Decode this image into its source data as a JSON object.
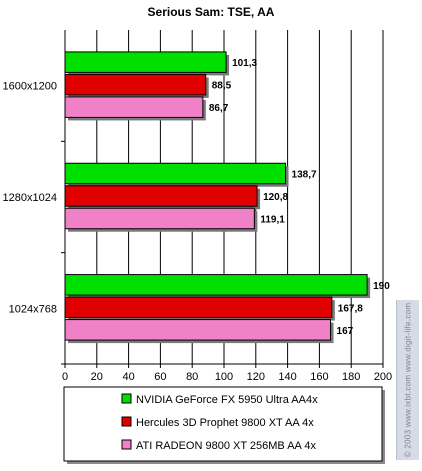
{
  "chart_data": {
    "type": "bar",
    "orientation": "horizontal",
    "title": "Serious Sam: TSE, AA",
    "categories": [
      "1600x1200",
      "1280x1024",
      "1024x768"
    ],
    "series": [
      {
        "name": "NVIDIA GeForce FX 5950 Ultra AA4x",
        "color": "#00e000",
        "values": [
          101.3,
          138.7,
          190
        ],
        "labels": [
          "101,3",
          "138,7",
          "190"
        ]
      },
      {
        "name": "Hercules 3D Prophet 9800 XT AA 4x",
        "color": "#e00000",
        "values": [
          88.5,
          120.8,
          167.8
        ],
        "labels": [
          "88,5",
          "120,8",
          "167,8"
        ]
      },
      {
        "name": "ATI RADEON 9800 XT 256MB AA 4x",
        "color": "#f080c8",
        "values": [
          86.7,
          119.1,
          167
        ],
        "labels": [
          "86,7",
          "119,1",
          "167"
        ]
      }
    ],
    "xlim": [
      0,
      200
    ],
    "xticks": [
      0,
      20,
      40,
      60,
      80,
      100,
      120,
      140,
      160,
      180,
      200
    ],
    "grid": true,
    "legend_position": "bottom"
  },
  "watermark": "© 2003 www.ixbt.com www.digit-life.com"
}
